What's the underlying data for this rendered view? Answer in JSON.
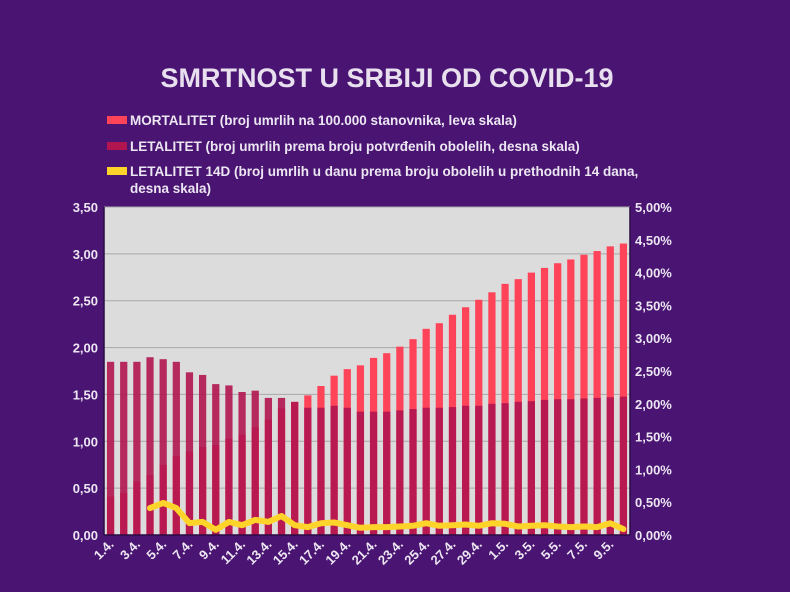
{
  "chart_data": {
    "type": "bar",
    "title": "SMRTNOST U SRBIJI OD COVID-19",
    "categories": [
      "1.4.",
      "2.4.",
      "3.4.",
      "4.4.",
      "5.4.",
      "6.4.",
      "7.4.",
      "8.4.",
      "9.4.",
      "10.4.",
      "11.4.",
      "12.4.",
      "13.4.",
      "14.4.",
      "15.4.",
      "16.4.",
      "17.4.",
      "18.4.",
      "19.4.",
      "20.4.",
      "21.4.",
      "22.4.",
      "23.4.",
      "24.4.",
      "25.4.",
      "26.4.",
      "27.4.",
      "28.4.",
      "29.4.",
      "30.4.",
      "1.5.",
      "2.5.",
      "3.5.",
      "4.5.",
      "5.5.",
      "6.5.",
      "7.5.",
      "8.5.",
      "9.5.",
      "10.5."
    ],
    "x_tick_labels": [
      "1.4.",
      "3.4.",
      "5.4.",
      "7.4.",
      "9.4.",
      "11.4.",
      "13.4.",
      "15.4.",
      "17.4.",
      "19.4.",
      "21.4.",
      "23.4.",
      "25.4.",
      "27.4.",
      "29.4.",
      "1.5.",
      "3.5.",
      "5.5.",
      "7.5.",
      "9.5."
    ],
    "left_axis": {
      "range": [
        0,
        3.5
      ],
      "ticks": [
        "0,00",
        "0,50",
        "1,00",
        "1,50",
        "2,00",
        "2,50",
        "3,00",
        "3,50"
      ]
    },
    "right_axis": {
      "range": [
        0,
        5
      ],
      "unit": "%",
      "ticks": [
        "0,00%",
        "0,50%",
        "1,00%",
        "1,50%",
        "2,00%",
        "2,50%",
        "3,00%",
        "3,50%",
        "4,00%",
        "4,50%",
        "5,00%"
      ]
    },
    "grid": true,
    "legend_placement": "top",
    "series": [
      {
        "name": "MORTALITET (broj umrlih na 100.000 stanovnika, leva skala)",
        "type": "bar",
        "axis": "left",
        "color": "#ff4359",
        "values": [
          0.41,
          0.45,
          0.57,
          0.64,
          0.75,
          0.84,
          0.89,
          0.94,
          0.96,
          1.03,
          1.07,
          1.15,
          1.23,
          1.35,
          1.42,
          1.49,
          1.59,
          1.7,
          1.77,
          1.81,
          1.89,
          1.94,
          2.01,
          2.09,
          2.2,
          2.26,
          2.35,
          2.43,
          2.51,
          2.59,
          2.68,
          2.73,
          2.8,
          2.85,
          2.9,
          2.94,
          2.99,
          3.03,
          3.08,
          3.11
        ]
      },
      {
        "name": "LETALITET (broj umrlih prema broju potvrđenih obolelih, desna skala)",
        "type": "bar",
        "axis": "right",
        "color": "#b0154f",
        "values": [
          2.64,
          2.64,
          2.64,
          2.71,
          2.68,
          2.64,
          2.48,
          2.44,
          2.3,
          2.28,
          2.18,
          2.2,
          2.09,
          2.09,
          2.03,
          1.94,
          1.94,
          1.97,
          1.94,
          1.88,
          1.88,
          1.88,
          1.9,
          1.92,
          1.94,
          1.94,
          1.95,
          1.97,
          1.97,
          2.0,
          2.01,
          2.03,
          2.04,
          2.06,
          2.07,
          2.07,
          2.08,
          2.09,
          2.1,
          2.11
        ]
      },
      {
        "name": "LETALITET 14D (broj umrlih u danu prema broju obolelih u prethodnih 14 dana, desna skala)",
        "type": "line",
        "axis": "right",
        "color": "#ffd42a",
        "values": [
          null,
          null,
          null,
          0.41,
          0.49,
          0.41,
          0.18,
          0.2,
          0.08,
          0.2,
          0.15,
          0.23,
          0.2,
          0.29,
          0.15,
          0.12,
          0.18,
          0.19,
          0.15,
          0.11,
          0.12,
          0.12,
          0.13,
          0.14,
          0.18,
          0.14,
          0.15,
          0.16,
          0.14,
          0.18,
          0.17,
          0.13,
          0.14,
          0.15,
          0.13,
          0.12,
          0.13,
          0.12,
          0.18,
          0.09
        ]
      }
    ],
    "legend": {
      "line1": "MORTALITET (broj umrlih na 100.000 stanovnika, leva skala)",
      "line2": "LETALITET (broj umrlih prema broju potvrđenih obolelih, desna skala)",
      "line3a": "LETALITET 14D (broj umrlih u danu prema broju obolelih u prethodnih 14 dana,",
      "line3b": "desna skala)"
    },
    "plot_background": "#dcdcdc"
  }
}
